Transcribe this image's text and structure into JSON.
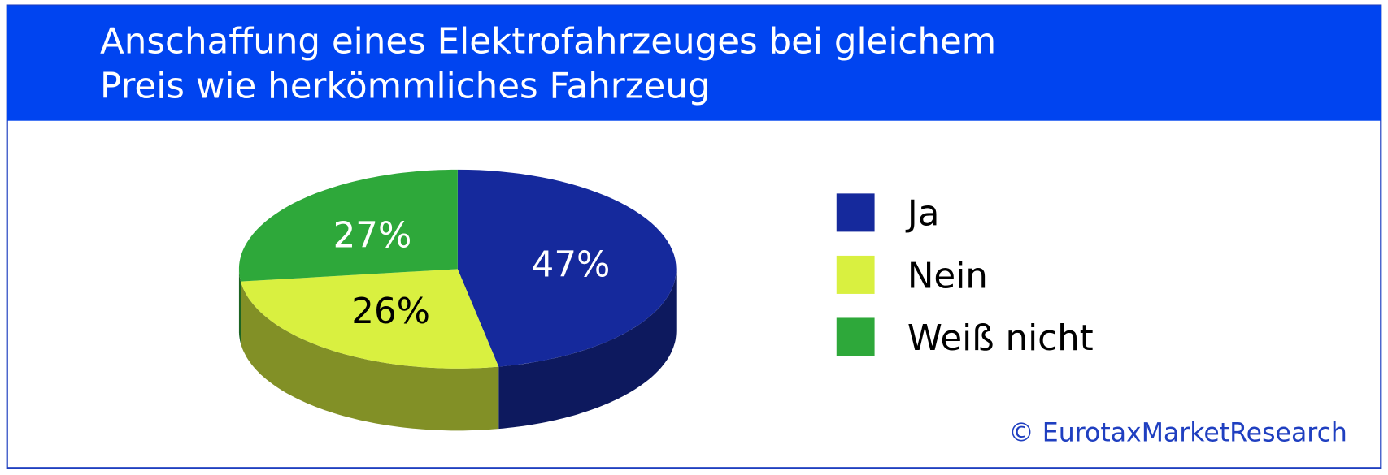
{
  "chart_data": {
    "type": "pie",
    "title": [
      "Anschaffung eines  Elektrofahrzeuges bei gleichem",
      "Preis wie herkömmliches Fahrzeug"
    ],
    "categories": [
      "Ja",
      "Nein",
      "Weiß nicht"
    ],
    "values": [
      47,
      26,
      27
    ],
    "value_labels": [
      "47%",
      "26%",
      "27%"
    ],
    "colors": [
      "#15299c",
      "#d9f040",
      "#2ea83a"
    ],
    "source": "© EurotaxMarketResearch",
    "legend": "right"
  }
}
